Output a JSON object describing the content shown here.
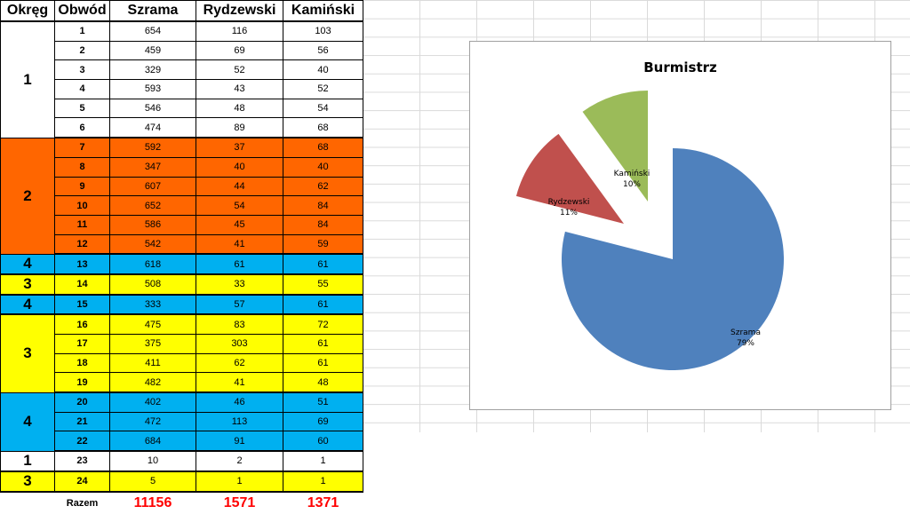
{
  "table": {
    "headers": {
      "okreg": "Okręg",
      "obwod": "Obwód",
      "szrama": "Szrama",
      "rydzewski": "Rydzewski",
      "kaminski": "Kamiński"
    },
    "rows": [
      {
        "okreg": "1",
        "obwod": "1",
        "szrama": "654",
        "rydzewski": "116",
        "kaminski": "103"
      },
      {
        "okreg": "",
        "obwod": "2",
        "szrama": "459",
        "rydzewski": "69",
        "kaminski": "56"
      },
      {
        "okreg": "",
        "obwod": "3",
        "szrama": "329",
        "rydzewski": "52",
        "kaminski": "40"
      },
      {
        "okreg": "",
        "obwod": "4",
        "szrama": "593",
        "rydzewski": "43",
        "kaminski": "52"
      },
      {
        "okreg": "",
        "obwod": "5",
        "szrama": "546",
        "rydzewski": "48",
        "kaminski": "54"
      },
      {
        "okreg": "",
        "obwod": "6",
        "szrama": "474",
        "rydzewski": "89",
        "kaminski": "68"
      },
      {
        "okreg": "2",
        "obwod": "7",
        "szrama": "592",
        "rydzewski": "37",
        "kaminski": "68"
      },
      {
        "okreg": "",
        "obwod": "8",
        "szrama": "347",
        "rydzewski": "40",
        "kaminski": "40"
      },
      {
        "okreg": "",
        "obwod": "9",
        "szrama": "607",
        "rydzewski": "44",
        "kaminski": "62"
      },
      {
        "okreg": "",
        "obwod": "10",
        "szrama": "652",
        "rydzewski": "54",
        "kaminski": "84"
      },
      {
        "okreg": "",
        "obwod": "11",
        "szrama": "586",
        "rydzewski": "45",
        "kaminski": "84"
      },
      {
        "okreg": "",
        "obwod": "12",
        "szrama": "542",
        "rydzewski": "41",
        "kaminski": "59"
      },
      {
        "okreg": "4",
        "obwod": "13",
        "szrama": "618",
        "rydzewski": "61",
        "kaminski": "61"
      },
      {
        "okreg": "3",
        "obwod": "14",
        "szrama": "508",
        "rydzewski": "33",
        "kaminski": "55"
      },
      {
        "okreg": "4",
        "obwod": "15",
        "szrama": "333",
        "rydzewski": "57",
        "kaminski": "61"
      },
      {
        "okreg": "3",
        "obwod": "16",
        "szrama": "475",
        "rydzewski": "83",
        "kaminski": "72"
      },
      {
        "okreg": "",
        "obwod": "17",
        "szrama": "375",
        "rydzewski": "303",
        "kaminski": "61"
      },
      {
        "okreg": "",
        "obwod": "18",
        "szrama": "411",
        "rydzewski": "62",
        "kaminski": "61"
      },
      {
        "okreg": "",
        "obwod": "19",
        "szrama": "482",
        "rydzewski": "41",
        "kaminski": "48"
      },
      {
        "okreg": "4",
        "obwod": "20",
        "szrama": "402",
        "rydzewski": "46",
        "kaminski": "51"
      },
      {
        "okreg": "",
        "obwod": "21",
        "szrama": "472",
        "rydzewski": "113",
        "kaminski": "69"
      },
      {
        "okreg": "",
        "obwod": "22",
        "szrama": "684",
        "rydzewski": "91",
        "kaminski": "60"
      },
      {
        "okreg": "1",
        "obwod": "23",
        "szrama": "10",
        "rydzewski": "2",
        "kaminski": "1"
      },
      {
        "okreg": "3",
        "obwod": "24",
        "szrama": "5",
        "rydzewski": "1",
        "kaminski": "1"
      }
    ],
    "groups": [
      {
        "label": "1",
        "rows": 6,
        "color": "#ffffff"
      },
      {
        "label": "2",
        "rows": 6,
        "color": "#ff6600"
      },
      {
        "label": "4",
        "rows": 1,
        "color": "#00b0f0"
      },
      {
        "label": "3",
        "rows": 1,
        "color": "#ffff00"
      },
      {
        "label": "4",
        "rows": 1,
        "color": "#00b0f0"
      },
      {
        "label": "3",
        "rows": 4,
        "color": "#ffff00"
      },
      {
        "label": "4",
        "rows": 3,
        "color": "#00b0f0"
      },
      {
        "label": "1",
        "rows": 1,
        "color": "#ffffff"
      },
      {
        "label": "3",
        "rows": 1,
        "color": "#ffff00"
      }
    ],
    "total": {
      "label": "Razem",
      "szrama": "11156",
      "rydzewski": "1571",
      "kaminski": "1371"
    },
    "total_color": "#ff0000"
  },
  "chart_data": {
    "type": "pie",
    "title": "Burmistrz",
    "slices": [
      {
        "name": "Szrama",
        "value": 79,
        "label": "79%",
        "color": "#4f81bd"
      },
      {
        "name": "Rydzewski",
        "value": 11,
        "label": "11%",
        "color": "#c0504d"
      },
      {
        "name": "Kamiński",
        "value": 10,
        "label": "10%",
        "color": "#9bbb59"
      }
    ],
    "exploded": true,
    "legend": "none"
  }
}
